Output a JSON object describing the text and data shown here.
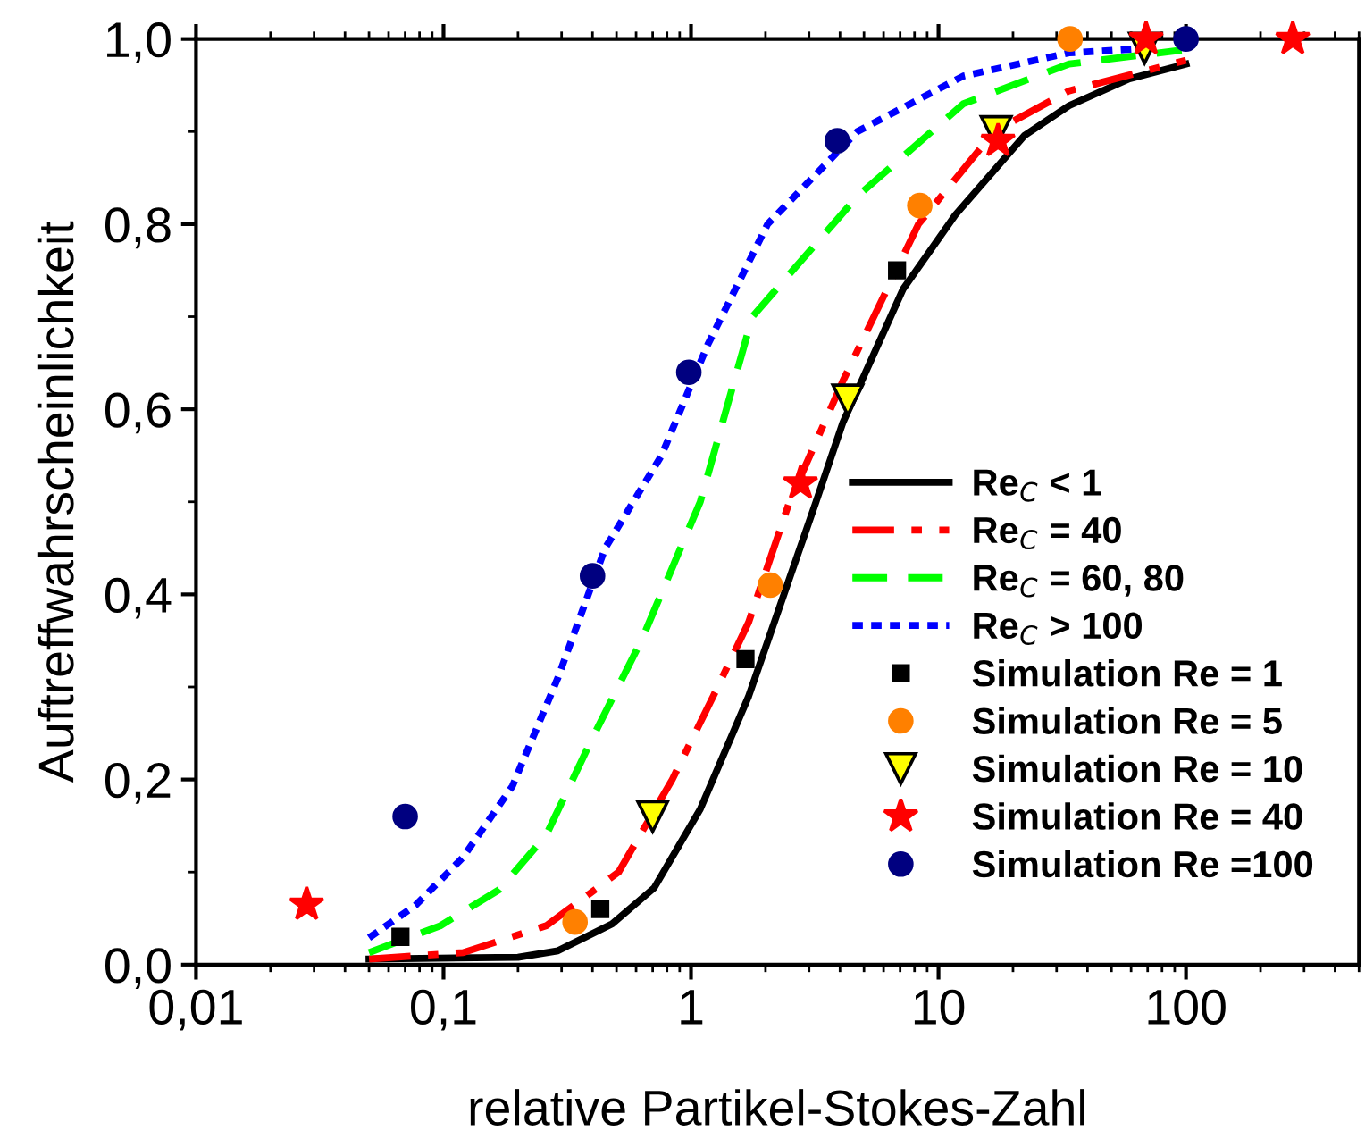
{
  "chart_data": {
    "type": "line",
    "xlabel": "relative Partikel-Stokes-Zahl",
    "ylabel": "Auftreffwahrscheinlichkeit",
    "log": "x",
    "xlim": [
      0.01,
      500
    ],
    "ylim": [
      0,
      1.0
    ],
    "xticks": [
      {
        "value": 0.01,
        "label": "0,01"
      },
      {
        "value": 0.1,
        "label": "0,1"
      },
      1,
      10,
      100
    ],
    "yticks": [
      {
        "value": 0,
        "label": "0,0"
      },
      {
        "value": 0.2,
        "label": "0,2"
      },
      {
        "value": 0.4,
        "label": "0,4"
      },
      {
        "value": 0.6,
        "label": "0,6"
      },
      {
        "value": 0.8,
        "label": "0,8"
      },
      {
        "value": 1.0,
        "label": "1,0"
      }
    ],
    "grid": false,
    "legend": "bottom right",
    "series": [
      {
        "name": "Re$_{C}$ < 1",
        "color": "#000000",
        "line_style": "solid",
        "marker": "none",
        "x": [
          0.05,
          0.2,
          0.29,
          0.48,
          0.71,
          1.09,
          1.71,
          3.2,
          4.1,
          7.2,
          11.7,
          22.3,
          33.7,
          59,
          100
        ],
        "values": [
          0.006,
          0.008,
          0.015,
          0.044,
          0.083,
          0.168,
          0.29,
          0.5,
          0.585,
          0.73,
          0.81,
          0.896,
          0.928,
          0.957,
          0.973
        ]
      },
      {
        "name": "Re$_{C}$ = 40",
        "color": "#ff0000",
        "line_style": "dashdot",
        "marker": "none",
        "x": [
          0.05,
          0.12,
          0.26,
          0.51,
          0.84,
          1.23,
          1.71,
          2.5,
          4.1,
          8.3,
          16.8,
          33.7,
          100
        ],
        "values": [
          0.006,
          0.013,
          0.042,
          0.1,
          0.2,
          0.29,
          0.37,
          0.5,
          0.63,
          0.8,
          0.9,
          0.944,
          0.977
        ]
      },
      {
        "name": "Re$_{C}$ = 60, 80",
        "color": "#00ff00",
        "line_style": "dashed",
        "marker": "none",
        "x": [
          0.05,
          0.097,
          0.168,
          0.26,
          0.4,
          0.63,
          1.09,
          1.77,
          4.7,
          12.6,
          33.7,
          96
        ],
        "values": [
          0.013,
          0.042,
          0.081,
          0.14,
          0.245,
          0.35,
          0.5,
          0.7,
          0.83,
          0.93,
          0.973,
          0.988
        ]
      },
      {
        "name": "Re$_{C}$ > 100",
        "color": "#0000ff",
        "line_style": "dotted",
        "marker": "none",
        "x": [
          0.05,
          0.077,
          0.12,
          0.19,
          0.29,
          0.45,
          0.76,
          1.17,
          2.04,
          4.7,
          12.6,
          33.7,
          70
        ],
        "values": [
          0.029,
          0.064,
          0.116,
          0.193,
          0.31,
          0.45,
          0.55,
          0.67,
          0.8,
          0.9,
          0.96,
          0.985,
          0.99
        ]
      },
      {
        "name": "Simulation Re = 1",
        "type": "scatter",
        "color": "#000000",
        "marker": "square",
        "x": [
          0.067,
          0.43,
          1.66,
          6.8
        ],
        "values": [
          0.03,
          0.06,
          0.33,
          0.75
        ]
      },
      {
        "name": "Simulation Re = 5",
        "type": "scatter",
        "color": "#ff8000",
        "marker": "circle",
        "x": [
          0.34,
          2.09,
          8.4,
          34
        ],
        "values": [
          0.046,
          0.41,
          0.82,
          1.0
        ]
      },
      {
        "name": "Simulation Re = 10",
        "type": "scatter",
        "color": "#ffff00",
        "marker": "triangle",
        "x": [
          0.7,
          4.3,
          17.1,
          68
        ],
        "values": [
          0.16,
          0.61,
          0.9,
          0.99
        ]
      },
      {
        "name": "Simulation Re = 40",
        "type": "scatter",
        "color": "#ff0000",
        "marker": "star",
        "x": [
          0.028,
          2.77,
          17.4,
          69,
          270
        ],
        "values": [
          0.065,
          0.52,
          0.89,
          1.0,
          1.0
        ]
      },
      {
        "name": "Simulation Re =100",
        "type": "scatter",
        "color": "#000080",
        "marker": "circle",
        "x": [
          0.07,
          0.4,
          0.98,
          3.9,
          100
        ],
        "values": [
          0.16,
          0.42,
          0.64,
          0.89,
          1.0
        ]
      }
    ]
  }
}
